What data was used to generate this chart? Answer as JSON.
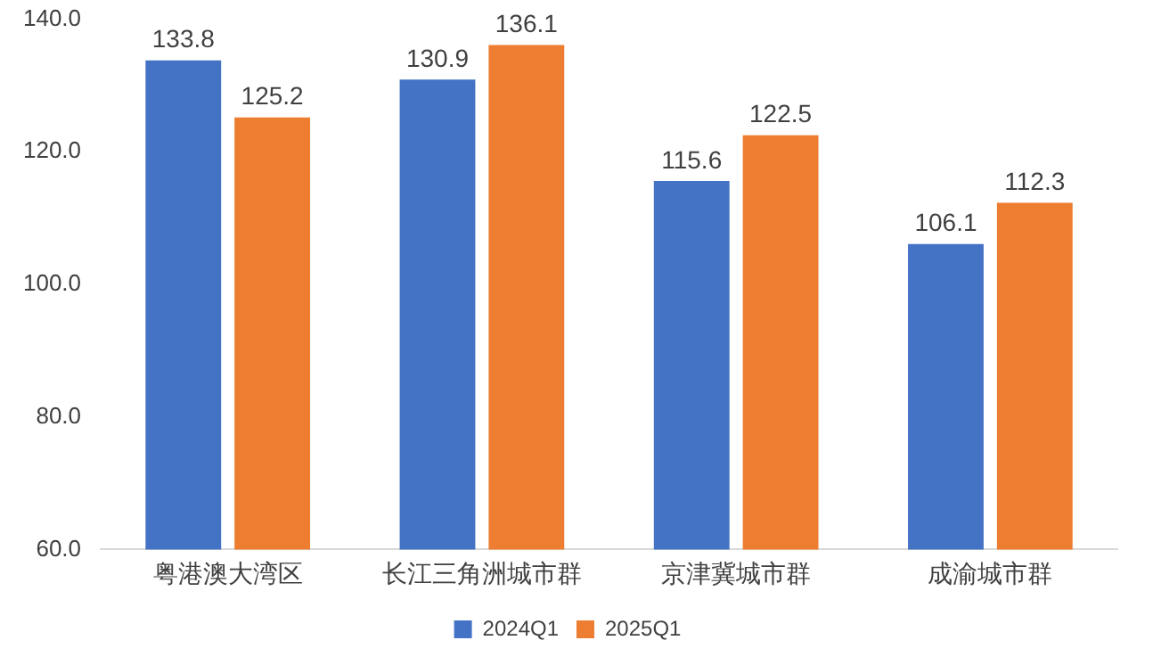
{
  "chart_data": {
    "type": "bar",
    "categories": [
      "粤港澳大湾区",
      "长江三角洲城市群",
      "京津冀城市群",
      "成渝城市群"
    ],
    "series": [
      {
        "name": "2024Q1",
        "color": "#4472c4",
        "values": [
          133.8,
          130.9,
          115.6,
          106.1
        ]
      },
      {
        "name": "2025Q1",
        "color": "#ed7d31",
        "values": [
          125.2,
          136.1,
          122.5,
          112.3
        ]
      }
    ],
    "ylim": [
      60,
      140
    ],
    "yticks": [
      {
        "value": 60,
        "label": "60.0"
      },
      {
        "value": 80,
        "label": "80.0"
      },
      {
        "value": 100,
        "label": "100.0"
      },
      {
        "value": 120,
        "label": "120.0"
      },
      {
        "value": 140,
        "label": "140.0"
      }
    ],
    "grid": false,
    "legend": "bottom",
    "data_labels": true
  }
}
